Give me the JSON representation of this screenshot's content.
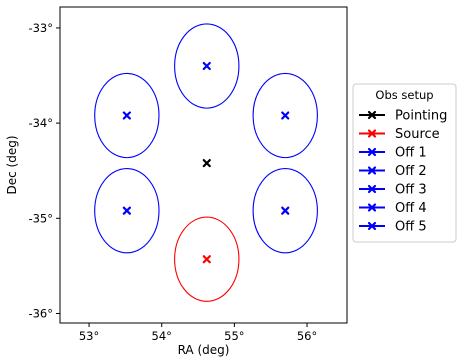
{
  "chart_data": {
    "type": "scatter",
    "xlabel": "RA (deg)",
    "ylabel": "Dec (deg)",
    "xlim": [
      52.6,
      56.55
    ],
    "ylim": [
      -36.1,
      -32.78
    ],
    "x_ticks": [
      53,
      54,
      55,
      56
    ],
    "x_tick_labels": [
      "53°",
      "54°",
      "55°",
      "56°"
    ],
    "y_ticks": [
      -33,
      -34,
      -35,
      -36
    ],
    "y_tick_labels": [
      "-33°",
      "-34°",
      "-35°",
      "-36°"
    ],
    "grid": false,
    "legend": {
      "title": "Obs setup",
      "placement": "outside-right"
    },
    "series": [
      {
        "name": "Pointing",
        "color": "#000000",
        "x": [
          54.62
        ],
        "y": [
          -34.42
        ],
        "circle_radius_deg": null
      },
      {
        "name": "Source",
        "color": "#ff0000",
        "x": [
          54.62
        ],
        "y": [
          -35.43
        ],
        "circle_radius_deg": 0.5
      },
      {
        "name": "Off 1",
        "color": "#0000ff",
        "x": [
          54.62
        ],
        "y": [
          -33.4
        ],
        "circle_radius_deg": 0.5
      },
      {
        "name": "Off 2",
        "color": "#0000ff",
        "x": [
          55.7
        ],
        "y": [
          -33.92
        ],
        "circle_radius_deg": 0.5
      },
      {
        "name": "Off 3",
        "color": "#0000ff",
        "x": [
          55.7
        ],
        "y": [
          -34.92
        ],
        "circle_radius_deg": 0.5
      },
      {
        "name": "Off 4",
        "color": "#0000ff",
        "x": [
          53.52
        ],
        "y": [
          -34.92
        ],
        "circle_radius_deg": 0.5
      },
      {
        "name": "Off 5",
        "color": "#0000ff",
        "x": [
          53.52
        ],
        "y": [
          -33.92
        ],
        "circle_radius_deg": 0.5
      }
    ]
  }
}
